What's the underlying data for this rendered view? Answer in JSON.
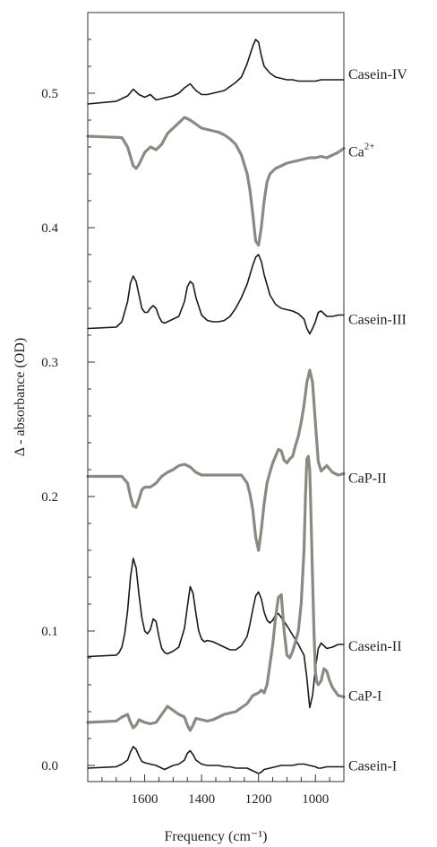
{
  "chart_data": {
    "type": "line",
    "xlabel": "Frequency (cm⁻¹)",
    "ylabel": "Δ - absorbance (OD)",
    "xlim": [
      1800,
      900
    ],
    "ylim": [
      -0.012,
      0.56
    ],
    "xticks": [
      1600,
      1400,
      1200,
      1000
    ],
    "xtick_labels": [
      "1600",
      "1400",
      "1200",
      "1000"
    ],
    "yticks": [
      0.0,
      0.1,
      0.2,
      0.3,
      0.4,
      0.5
    ],
    "ytick_labels": [
      "0.0",
      "0.1",
      "0.2",
      "0.3",
      "0.4",
      "0.5"
    ],
    "grid": false,
    "legend": "none",
    "colors": {
      "casein": "#1a1a1a",
      "mineral": "#8a8a82"
    },
    "series": [
      {
        "name": "Casein-IV",
        "label": "Casein-IV",
        "sup": "",
        "color": "#1a1a1a",
        "width": 1.6,
        "x": [
          1800,
          1700,
          1680,
          1660,
          1640,
          1620,
          1600,
          1580,
          1560,
          1540,
          1520,
          1500,
          1480,
          1460,
          1440,
          1420,
          1400,
          1380,
          1360,
          1340,
          1320,
          1300,
          1280,
          1260,
          1240,
          1220,
          1210,
          1200,
          1190,
          1180,
          1160,
          1140,
          1120,
          1100,
          1080,
          1060,
          1040,
          1020,
          1000,
          980,
          960,
          940,
          920,
          900
        ],
        "y": [
          0.492,
          0.494,
          0.496,
          0.498,
          0.503,
          0.499,
          0.497,
          0.499,
          0.495,
          0.496,
          0.497,
          0.498,
          0.5,
          0.504,
          0.507,
          0.502,
          0.499,
          0.499,
          0.5,
          0.501,
          0.502,
          0.505,
          0.508,
          0.512,
          0.522,
          0.535,
          0.54,
          0.538,
          0.528,
          0.52,
          0.515,
          0.512,
          0.511,
          0.51,
          0.51,
          0.509,
          0.509,
          0.509,
          0.509,
          0.51,
          0.51,
          0.51,
          0.51,
          0.51
        ]
      },
      {
        "name": "Ca",
        "label": "Ca",
        "sup": "2+",
        "color": "#8a8a82",
        "width": 3.2,
        "x": [
          1800,
          1680,
          1660,
          1640,
          1630,
          1620,
          1600,
          1580,
          1560,
          1540,
          1520,
          1500,
          1480,
          1460,
          1440,
          1420,
          1400,
          1380,
          1360,
          1340,
          1320,
          1300,
          1280,
          1260,
          1240,
          1230,
          1220,
          1210,
          1200,
          1190,
          1180,
          1170,
          1160,
          1140,
          1120,
          1100,
          1080,
          1060,
          1040,
          1020,
          1000,
          980,
          960,
          940,
          920,
          900
        ],
        "y": [
          0.468,
          0.467,
          0.46,
          0.446,
          0.444,
          0.447,
          0.456,
          0.46,
          0.458,
          0.462,
          0.47,
          0.474,
          0.478,
          0.482,
          0.48,
          0.477,
          0.474,
          0.473,
          0.472,
          0.471,
          0.469,
          0.466,
          0.462,
          0.454,
          0.44,
          0.428,
          0.41,
          0.39,
          0.387,
          0.4,
          0.42,
          0.434,
          0.44,
          0.444,
          0.446,
          0.448,
          0.449,
          0.45,
          0.451,
          0.452,
          0.452,
          0.453,
          0.452,
          0.454,
          0.456,
          0.459
        ]
      },
      {
        "name": "Casein-III",
        "label": "Casein-III",
        "sup": "",
        "color": "#1a1a1a",
        "width": 1.6,
        "x": [
          1800,
          1700,
          1680,
          1660,
          1650,
          1640,
          1630,
          1620,
          1610,
          1600,
          1590,
          1580,
          1570,
          1560,
          1550,
          1540,
          1530,
          1520,
          1500,
          1480,
          1460,
          1450,
          1440,
          1430,
          1420,
          1400,
          1380,
          1360,
          1340,
          1320,
          1300,
          1280,
          1260,
          1240,
          1220,
          1210,
          1200,
          1190,
          1180,
          1160,
          1140,
          1120,
          1100,
          1080,
          1060,
          1040,
          1030,
          1020,
          1010,
          1000,
          990,
          980,
          960,
          940,
          920,
          900
        ],
        "y": [
          0.325,
          0.326,
          0.33,
          0.345,
          0.359,
          0.364,
          0.36,
          0.35,
          0.34,
          0.337,
          0.337,
          0.34,
          0.342,
          0.34,
          0.334,
          0.33,
          0.329,
          0.33,
          0.332,
          0.334,
          0.345,
          0.356,
          0.36,
          0.358,
          0.348,
          0.335,
          0.331,
          0.33,
          0.33,
          0.331,
          0.334,
          0.34,
          0.348,
          0.358,
          0.372,
          0.378,
          0.38,
          0.375,
          0.365,
          0.35,
          0.343,
          0.34,
          0.339,
          0.338,
          0.336,
          0.332,
          0.325,
          0.321,
          0.325,
          0.33,
          0.337,
          0.338,
          0.334,
          0.334,
          0.335,
          0.335
        ]
      },
      {
        "name": "CaP-II",
        "label": "CaP-II",
        "sup": "",
        "color": "#8a8a82",
        "width": 3.2,
        "x": [
          1800,
          1680,
          1660,
          1650,
          1640,
          1630,
          1620,
          1610,
          1600,
          1580,
          1560,
          1540,
          1520,
          1500,
          1480,
          1460,
          1440,
          1420,
          1400,
          1380,
          1360,
          1340,
          1320,
          1300,
          1280,
          1260,
          1240,
          1230,
          1220,
          1210,
          1200,
          1190,
          1180,
          1170,
          1160,
          1150,
          1140,
          1130,
          1120,
          1110,
          1100,
          1090,
          1080,
          1070,
          1060,
          1050,
          1040,
          1030,
          1020,
          1010,
          1000,
          990,
          980,
          960,
          940,
          920,
          900
        ],
        "y": [
          0.215,
          0.215,
          0.21,
          0.2,
          0.193,
          0.192,
          0.198,
          0.205,
          0.207,
          0.207,
          0.21,
          0.215,
          0.218,
          0.22,
          0.223,
          0.224,
          0.222,
          0.218,
          0.216,
          0.216,
          0.216,
          0.216,
          0.216,
          0.216,
          0.216,
          0.216,
          0.21,
          0.202,
          0.19,
          0.17,
          0.16,
          0.175,
          0.195,
          0.21,
          0.218,
          0.225,
          0.23,
          0.235,
          0.234,
          0.227,
          0.225,
          0.228,
          0.23,
          0.238,
          0.245,
          0.255,
          0.268,
          0.285,
          0.294,
          0.285,
          0.255,
          0.226,
          0.219,
          0.223,
          0.218,
          0.216,
          0.217
        ]
      },
      {
        "name": "Casein-II",
        "label": "Casein-II",
        "sup": "",
        "color": "#1a1a1a",
        "width": 1.6,
        "x": [
          1800,
          1700,
          1690,
          1680,
          1670,
          1660,
          1650,
          1640,
          1630,
          1620,
          1610,
          1600,
          1590,
          1580,
          1570,
          1560,
          1550,
          1540,
          1530,
          1520,
          1500,
          1480,
          1460,
          1450,
          1440,
          1430,
          1420,
          1410,
          1400,
          1390,
          1380,
          1360,
          1340,
          1320,
          1300,
          1280,
          1260,
          1240,
          1230,
          1220,
          1210,
          1200,
          1190,
          1180,
          1170,
          1160,
          1150,
          1140,
          1130,
          1120,
          1100,
          1080,
          1060,
          1040,
          1030,
          1020,
          1010,
          1000,
          990,
          980,
          960,
          940,
          920,
          900
        ],
        "y": [
          0.081,
          0.082,
          0.084,
          0.088,
          0.098,
          0.115,
          0.14,
          0.154,
          0.147,
          0.127,
          0.11,
          0.1,
          0.098,
          0.101,
          0.109,
          0.107,
          0.096,
          0.087,
          0.084,
          0.083,
          0.085,
          0.088,
          0.102,
          0.118,
          0.133,
          0.128,
          0.113,
          0.1,
          0.094,
          0.092,
          0.093,
          0.092,
          0.09,
          0.088,
          0.086,
          0.086,
          0.089,
          0.096,
          0.105,
          0.116,
          0.126,
          0.129,
          0.124,
          0.114,
          0.108,
          0.106,
          0.108,
          0.112,
          0.113,
          0.11,
          0.104,
          0.097,
          0.09,
          0.082,
          0.065,
          0.043,
          0.052,
          0.072,
          0.087,
          0.091,
          0.087,
          0.088,
          0.09,
          0.09
        ]
      },
      {
        "name": "CaP-I",
        "label": "CaP-I",
        "sup": "",
        "color": "#8a8a82",
        "width": 3.2,
        "x": [
          1800,
          1700,
          1680,
          1660,
          1650,
          1640,
          1630,
          1620,
          1600,
          1580,
          1560,
          1540,
          1520,
          1500,
          1480,
          1460,
          1450,
          1440,
          1430,
          1420,
          1400,
          1380,
          1360,
          1340,
          1320,
          1300,
          1280,
          1260,
          1240,
          1220,
          1200,
          1190,
          1180,
          1170,
          1160,
          1150,
          1140,
          1130,
          1120,
          1110,
          1100,
          1090,
          1080,
          1070,
          1060,
          1050,
          1040,
          1035,
          1030,
          1025,
          1020,
          1015,
          1010,
          1005,
          1000,
          995,
          990,
          980,
          970,
          960,
          950,
          940,
          930,
          920,
          900
        ],
        "y": [
          0.032,
          0.033,
          0.036,
          0.038,
          0.032,
          0.028,
          0.03,
          0.034,
          0.032,
          0.031,
          0.032,
          0.038,
          0.044,
          0.041,
          0.038,
          0.036,
          0.03,
          0.026,
          0.03,
          0.035,
          0.034,
          0.033,
          0.034,
          0.036,
          0.038,
          0.039,
          0.04,
          0.043,
          0.046,
          0.052,
          0.054,
          0.056,
          0.054,
          0.06,
          0.075,
          0.09,
          0.11,
          0.125,
          0.127,
          0.1,
          0.082,
          0.08,
          0.085,
          0.092,
          0.1,
          0.12,
          0.16,
          0.2,
          0.228,
          0.23,
          0.22,
          0.18,
          0.14,
          0.1,
          0.07,
          0.062,
          0.06,
          0.063,
          0.072,
          0.07,
          0.063,
          0.058,
          0.055,
          0.052,
          0.051
        ]
      },
      {
        "name": "Casein-I",
        "label": "Casein-I",
        "sup": "",
        "color": "#1a1a1a",
        "width": 1.6,
        "x": [
          1800,
          1700,
          1680,
          1660,
          1650,
          1640,
          1630,
          1620,
          1610,
          1600,
          1580,
          1560,
          1540,
          1530,
          1520,
          1500,
          1480,
          1460,
          1450,
          1440,
          1430,
          1420,
          1400,
          1380,
          1360,
          1340,
          1320,
          1300,
          1280,
          1260,
          1240,
          1220,
          1210,
          1200,
          1190,
          1180,
          1160,
          1140,
          1120,
          1100,
          1080,
          1060,
          1040,
          1020,
          1000,
          990,
          980,
          960,
          940,
          920,
          900
        ],
        "y": [
          -0.002,
          -0.001,
          0.001,
          0.004,
          0.01,
          0.014,
          0.012,
          0.007,
          0.003,
          0.002,
          0.001,
          0.0,
          -0.002,
          -0.003,
          -0.002,
          0.0,
          0.001,
          0.004,
          0.009,
          0.011,
          0.008,
          0.004,
          0.001,
          0.0,
          0.0,
          0.0,
          -0.001,
          -0.001,
          -0.002,
          -0.002,
          -0.002,
          -0.004,
          -0.005,
          -0.006,
          -0.005,
          -0.003,
          -0.002,
          -0.001,
          0.0,
          0.0,
          0.0,
          0.001,
          0.001,
          0.0,
          -0.001,
          -0.002,
          -0.002,
          -0.001,
          -0.001,
          -0.001,
          -0.001
        ]
      }
    ]
  }
}
